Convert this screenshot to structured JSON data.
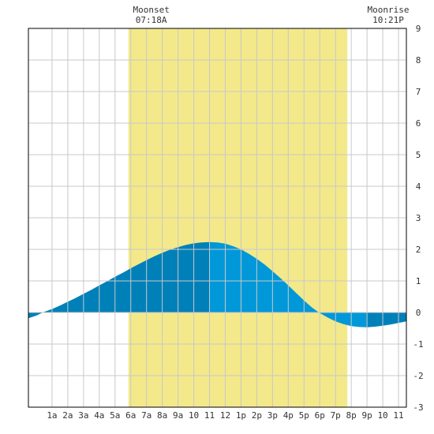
{
  "chart_data": {
    "type": "area",
    "title": "",
    "xlabel": "",
    "ylabel": "",
    "xlim": [
      -0.5,
      23.5
    ],
    "ylim": [
      -3,
      9
    ],
    "y_ticks": [
      9,
      8,
      7,
      6,
      5,
      4,
      3,
      2,
      1,
      0,
      -1,
      -2,
      -3
    ],
    "x_tick_labels": [
      "1a",
      "2a",
      "3a",
      "4a",
      "5a",
      "6a",
      "7a",
      "8a",
      "9a",
      "10",
      "11",
      "12",
      "1p",
      "2p",
      "3p",
      "4p",
      "5p",
      "6p",
      "7p",
      "8p",
      "9p",
      "10",
      "11"
    ],
    "x_tick_hours": [
      1,
      2,
      3,
      4,
      5,
      6,
      7,
      8,
      9,
      10,
      11,
      12,
      13,
      14,
      15,
      16,
      17,
      18,
      19,
      20,
      21,
      22,
      23
    ],
    "grid": true,
    "daylight_hours": [
      5.85,
      19.75
    ],
    "events": [
      {
        "name": "Moonset",
        "time": "07:18A",
        "hour": 7.3
      },
      {
        "name": "Moonrise",
        "time": "10:21P",
        "hour": 22.35
      }
    ],
    "series": [
      {
        "x": [
          -0.5,
          0,
          0.5,
          1,
          1.5,
          2,
          2.5,
          3,
          3.5,
          4,
          4.5,
          5,
          5.5,
          6,
          6.5,
          7,
          7.5,
          8,
          8.5,
          9,
          9.5,
          10,
          10.5,
          11,
          11.5,
          12,
          12.5,
          13,
          13.5,
          14,
          14.5,
          15,
          15.5,
          16,
          16.5,
          17,
          17.5,
          18,
          18.5,
          19,
          19.5,
          20,
          20.5,
          21,
          21.5,
          22,
          22.5,
          23,
          23.5
        ],
        "values": [
          -0.18,
          -0.1,
          0.02,
          0.11,
          0.22,
          0.34,
          0.46,
          0.59,
          0.72,
          0.86,
          0.99,
          1.13,
          1.26,
          1.4,
          1.53,
          1.66,
          1.78,
          1.89,
          1.99,
          2.07,
          2.14,
          2.19,
          2.22,
          2.23,
          2.22,
          2.18,
          2.1,
          2.0,
          1.86,
          1.7,
          1.52,
          1.31,
          1.09,
          0.86,
          0.62,
          0.38,
          0.16,
          -0.02,
          -0.16,
          -0.28,
          -0.37,
          -0.43,
          -0.46,
          -0.47,
          -0.45,
          -0.42,
          -0.38,
          -0.33,
          -0.28
        ]
      }
    ],
    "colors": {
      "daylight": "#f3e98a",
      "tide_dark": "#0080b8",
      "tide_light": "#0098d8",
      "grid": "#c8c8c8",
      "axis": "#000000",
      "text": "#333333"
    }
  }
}
